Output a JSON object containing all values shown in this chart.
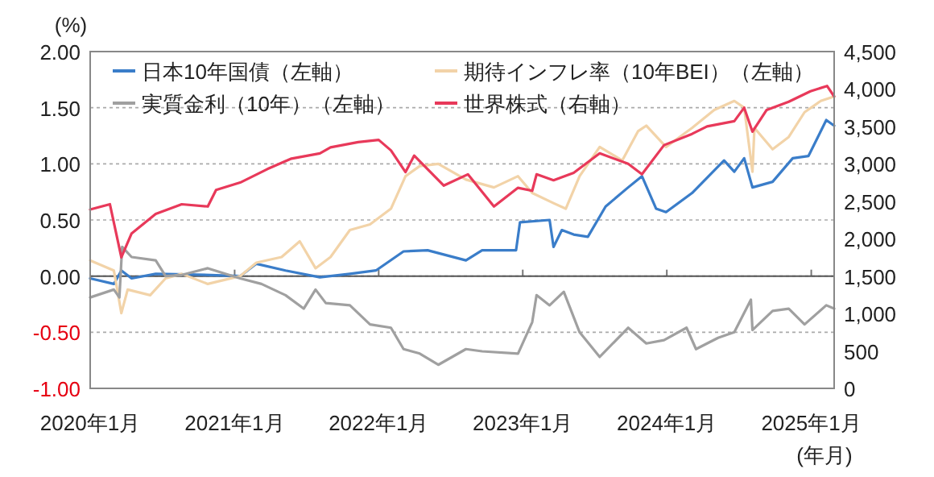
{
  "chart_data": {
    "type": "line",
    "ylabel": "(%)",
    "xlabel": "(年月)",
    "grid": "y",
    "legend": "top left",
    "line_style": "solid",
    "xlim": [
      "2020-01-01",
      "2025-02-28"
    ],
    "xticks": [
      {
        "value": "2020-01-01",
        "label": "2020年1月"
      },
      {
        "value": "2021-01-01",
        "label": "2021年1月"
      },
      {
        "value": "2022-01-01",
        "label": "2022年1月"
      },
      {
        "value": "2023-01-01",
        "label": "2023年1月"
      },
      {
        "value": "2024-01-01",
        "label": "2024年1月"
      },
      {
        "value": "2025-01-01",
        "label": "2025年1月"
      }
    ],
    "ylim": [
      -1,
      2
    ],
    "yticks": [
      {
        "value": 2,
        "label": "2.00"
      },
      {
        "value": 1.5,
        "label": "1.50"
      },
      {
        "value": 1,
        "label": "1.00"
      },
      {
        "value": 0.5,
        "label": "0.50"
      },
      {
        "value": 0,
        "label": "0.00"
      },
      {
        "value": -0.5,
        "label": "-0.50"
      },
      {
        "value": -1,
        "label": "-1.00"
      }
    ],
    "y2lim": [
      0,
      4500
    ],
    "y2ticks": [
      {
        "value": 4500,
        "label": "4,500"
      },
      {
        "value": 4000,
        "label": "4,000"
      },
      {
        "value": 3500,
        "label": "3,500"
      },
      {
        "value": 3000,
        "label": "3,000"
      },
      {
        "value": 2500,
        "label": "2,500"
      },
      {
        "value": 2000,
        "label": "2,000"
      },
      {
        "value": 1500,
        "label": "1,500"
      },
      {
        "value": 1000,
        "label": "1,000"
      },
      {
        "value": 500,
        "label": "500"
      },
      0
    ],
    "ref_lines": [
      {
        "axis": "y",
        "value": 0,
        "color": "#555555"
      }
    ],
    "series": [
      {
        "name": "日本10年国債（左軸）",
        "color": "#3a7dc9",
        "x": [
          "2020-01-01",
          "2020-03-01",
          "2020-03-20",
          "2020-04-15",
          "2020-06-15",
          "2020-11-01",
          "2021-01-15",
          "2021-02-25",
          "2021-05-10",
          "2021-08-05",
          "2021-10-20",
          "2021-12-25",
          "2022-03-05",
          "2022-05-05",
          "2022-08-10",
          "2022-09-20",
          "2022-12-15",
          "2022-12-25",
          "2023-03-10",
          "2023-03-20",
          "2023-04-10",
          "2023-05-10",
          "2023-06-15",
          "2023-07-30",
          "2023-09-25",
          "2023-10-30",
          "2023-12-05",
          "2023-12-30",
          "2024-03-05",
          "2024-05-25",
          "2024-06-20",
          "2024-07-15",
          "2024-08-05",
          "2024-09-25",
          "2024-11-15",
          "2024-12-25",
          "2025-02-08",
          "2025-02-28"
        ],
        "values": [
          -0.02,
          -0.07,
          0.05,
          -0.02,
          0.02,
          0.01,
          0.0,
          0.11,
          0.05,
          -0.01,
          0.02,
          0.05,
          0.22,
          0.23,
          0.14,
          0.23,
          0.23,
          0.48,
          0.5,
          0.26,
          0.41,
          0.37,
          0.35,
          0.62,
          0.79,
          0.89,
          0.6,
          0.57,
          0.74,
          1.03,
          0.93,
          1.05,
          0.79,
          0.84,
          1.05,
          1.07,
          1.39,
          1.34
        ]
      },
      {
        "name": "期待インフレ率（10年BEI）（左軸）",
        "color": "#f2d3a8",
        "x": [
          "2020-01-01",
          "2020-03-01",
          "2020-03-20",
          "2020-04-05",
          "2020-06-01",
          "2020-07-10",
          "2020-08-20",
          "2020-10-25",
          "2021-01-15",
          "2021-02-25",
          "2021-04-30",
          "2021-06-15",
          "2021-07-25",
          "2021-09-01",
          "2021-10-20",
          "2021-12-10",
          "2022-02-01",
          "2022-03-10",
          "2022-04-15",
          "2022-06-01",
          "2022-08-10",
          "2022-10-20",
          "2022-12-20",
          "2023-01-25",
          "2023-03-20",
          "2023-04-20",
          "2023-05-25",
          "2023-07-15",
          "2023-09-10",
          "2023-10-20",
          "2023-11-10",
          "2023-12-30",
          "2024-03-05",
          "2024-04-30",
          "2024-06-20",
          "2024-07-15",
          "2024-08-05",
          "2024-08-10",
          "2024-09-25",
          "2024-11-05",
          "2024-12-15",
          "2025-01-25",
          "2025-02-28"
        ],
        "values": [
          0.14,
          0.05,
          -0.33,
          -0.12,
          -0.17,
          -0.02,
          0.02,
          -0.07,
          0.0,
          0.12,
          0.17,
          0.31,
          0.07,
          0.17,
          0.41,
          0.46,
          0.6,
          0.89,
          0.98,
          1.0,
          0.86,
          0.79,
          0.89,
          0.74,
          0.65,
          0.6,
          0.89,
          1.15,
          1.03,
          1.29,
          1.34,
          1.15,
          1.32,
          1.48,
          1.56,
          1.5,
          0.93,
          1.32,
          1.13,
          1.24,
          1.46,
          1.56,
          1.6
        ]
      },
      {
        "name": "実質金利（10年）（左軸）",
        "color": "#a0a0a0",
        "x": [
          "2020-01-01",
          "2020-03-01",
          "2020-03-15",
          "2020-03-22",
          "2020-04-15",
          "2020-06-15",
          "2020-07-10",
          "2020-08-20",
          "2020-10-25",
          "2021-01-15",
          "2021-03-10",
          "2021-05-10",
          "2021-06-25",
          "2021-07-25",
          "2021-08-20",
          "2021-10-20",
          "2021-12-10",
          "2022-02-01",
          "2022-03-05",
          "2022-04-15",
          "2022-06-01",
          "2022-08-10",
          "2022-09-20",
          "2022-12-20",
          "2023-01-25",
          "2023-02-05",
          "2023-03-10",
          "2023-04-15",
          "2023-05-25",
          "2023-07-15",
          "2023-09-25",
          "2023-11-10",
          "2023-12-25",
          "2024-02-20",
          "2024-03-15",
          "2024-05-10",
          "2024-06-20",
          "2024-08-01",
          "2024-08-05",
          "2024-09-25",
          "2024-11-05",
          "2024-12-15",
          "2025-02-08",
          "2025-02-28"
        ],
        "values": [
          -0.19,
          -0.12,
          -0.19,
          0.26,
          0.17,
          0.14,
          0.0,
          0.01,
          0.07,
          -0.02,
          -0.07,
          -0.17,
          -0.29,
          -0.12,
          -0.24,
          -0.26,
          -0.43,
          -0.46,
          -0.65,
          -0.69,
          -0.79,
          -0.65,
          -0.67,
          -0.69,
          -0.41,
          -0.17,
          -0.26,
          -0.14,
          -0.5,
          -0.72,
          -0.46,
          -0.6,
          -0.57,
          -0.46,
          -0.65,
          -0.55,
          -0.5,
          -0.21,
          -0.48,
          -0.31,
          -0.29,
          -0.43,
          -0.26,
          -0.29
        ]
      },
      {
        "name": "世界株式（右軸）",
        "color": "#e8395a",
        "axis": "y2",
        "x": [
          "2020-01-01",
          "2020-02-20",
          "2020-03-20",
          "2020-04-15",
          "2020-06-15",
          "2020-08-20",
          "2020-10-25",
          "2020-11-15",
          "2021-01-15",
          "2021-03-25",
          "2021-05-25",
          "2021-08-05",
          "2021-09-01",
          "2021-11-10",
          "2022-01-01",
          "2022-02-01",
          "2022-03-10",
          "2022-04-01",
          "2022-06-15",
          "2022-08-15",
          "2022-10-20",
          "2022-12-20",
          "2023-01-25",
          "2023-02-05",
          "2023-03-20",
          "2023-05-10",
          "2023-07-15",
          "2023-09-25",
          "2023-10-30",
          "2023-12-25",
          "2024-03-05",
          "2024-04-12",
          "2024-06-20",
          "2024-07-15",
          "2024-08-05",
          "2024-09-10",
          "2024-11-05",
          "2024-12-30",
          "2025-02-10",
          "2025-02-28"
        ],
        "values": [
          2390,
          2460,
          1750,
          2070,
          2330,
          2460,
          2430,
          2650,
          2750,
          2930,
          3070,
          3140,
          3220,
          3290,
          3320,
          3180,
          2890,
          3110,
          2710,
          2860,
          2430,
          2680,
          2640,
          2860,
          2780,
          2880,
          3140,
          3000,
          2860,
          3250,
          3400,
          3500,
          3570,
          3750,
          3430,
          3720,
          3830,
          3970,
          4040,
          3900
        ]
      }
    ]
  }
}
